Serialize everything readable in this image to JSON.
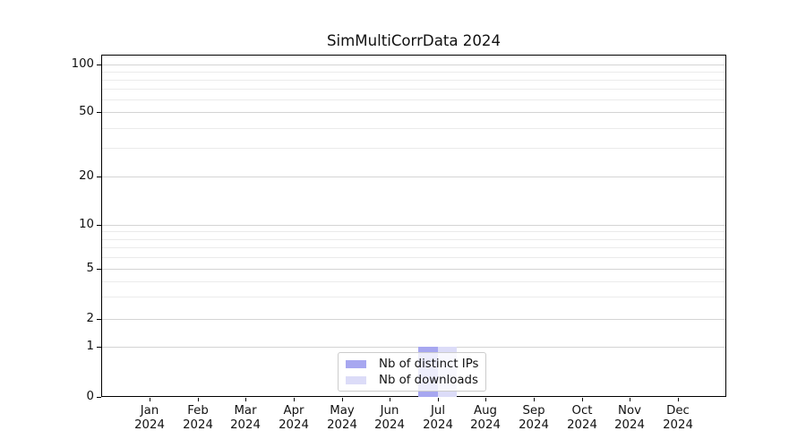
{
  "title": "SimMultiCorrData 2024",
  "chart_data": {
    "type": "bar",
    "title": "SimMultiCorrData 2024",
    "x_categories": [
      "Jan",
      "Feb",
      "Mar",
      "Apr",
      "May",
      "Jun",
      "Jul",
      "Aug",
      "Sep",
      "Oct",
      "Nov",
      "Dec"
    ],
    "x_year": "2024",
    "series": [
      {
        "name": "Nb of distinct IPs",
        "color": "#a7a7f0",
        "values": [
          0,
          0,
          0,
          0,
          0,
          0,
          1,
          0,
          0,
          0,
          0,
          0
        ]
      },
      {
        "name": "Nb of downloads",
        "color": "#dcdcf8",
        "values": [
          0,
          0,
          0,
          0,
          0,
          0,
          1,
          0,
          0,
          0,
          0,
          0
        ]
      }
    ],
    "y_scale": "symlog",
    "y_major_ticks": [
      0,
      1,
      2,
      5,
      10,
      20,
      50,
      100
    ],
    "y_minor_ticks": [
      3,
      4,
      6,
      7,
      8,
      9,
      30,
      40,
      60,
      70,
      80,
      90
    ],
    "ylim": [
      0,
      115
    ],
    "grid": {
      "axis": "y",
      "which": "both"
    },
    "legend_position": "lower-center"
  },
  "colors": {
    "grid_minor": "#ebebeb",
    "grid_major": "#d4d4d4",
    "spine": "#000000",
    "text": "#111111",
    "legend_border": "#cccccc",
    "background": "#ffffff"
  }
}
